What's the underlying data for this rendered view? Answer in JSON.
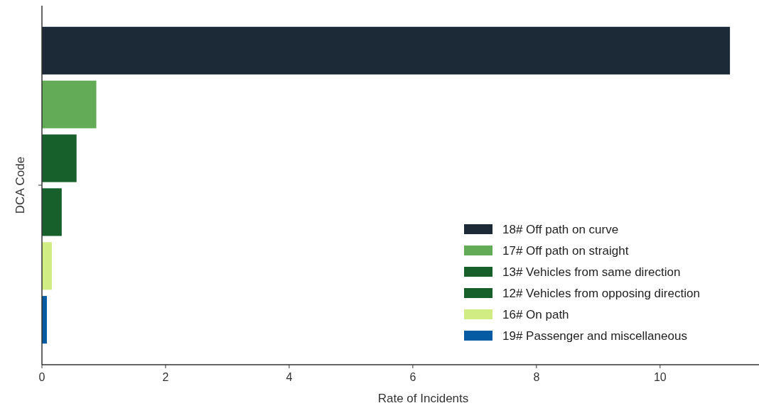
{
  "chart_data": {
    "type": "bar",
    "orientation": "horizontal",
    "xlabel": "Rate of Incidents",
    "ylabel": "DCA Code",
    "categories": [
      null
    ],
    "series": [
      {
        "name": "18# Off path on curve",
        "color": "#1b2a36",
        "values": [
          11.13
        ]
      },
      {
        "name": "17# Off path on straight",
        "color": "#63ab57",
        "values": [
          0.88
        ]
      },
      {
        "name": "13# Vehicles from same direction",
        "color": "#17602c",
        "values": [
          0.56
        ]
      },
      {
        "name": "12# Vehicles from opposing direction",
        "color": "#17602c",
        "values": [
          0.32
        ]
      },
      {
        "name": "16# On path",
        "color": "#d0ec83",
        "values": [
          0.16
        ]
      },
      {
        "name": "19# Passenger and miscellaneous",
        "color": "#045ba1",
        "values": [
          0.08
        ]
      }
    ],
    "xlim": [
      0,
      11.6
    ],
    "xticks": [
      0,
      2,
      4,
      6,
      8,
      10
    ],
    "grid": false,
    "legend": "bottom right"
  }
}
